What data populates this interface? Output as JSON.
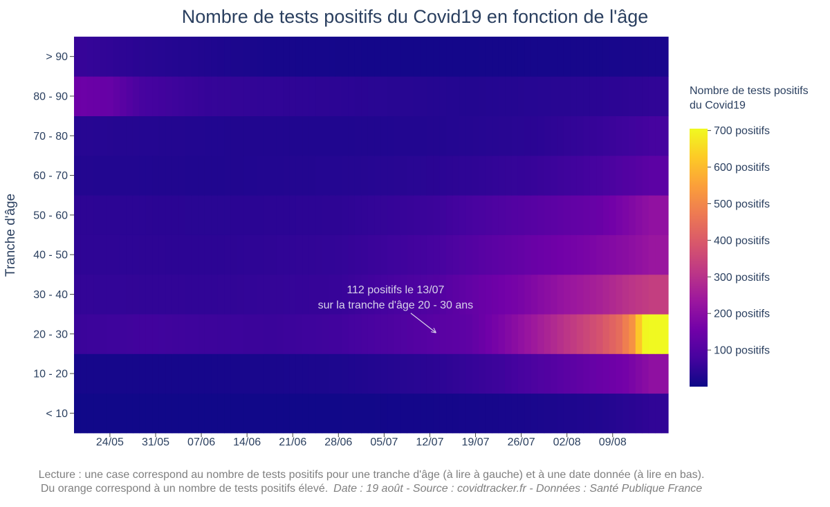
{
  "chart_data": {
    "type": "heatmap",
    "title": "Nombre de tests positifs du Covid19 en fonction de l'âge",
    "ylabel": "Tranche d'âge",
    "xlabel": "",
    "x_ticks": [
      "24/05",
      "31/05",
      "07/06",
      "14/06",
      "21/06",
      "28/06",
      "05/07",
      "12/07",
      "19/07",
      "26/07",
      "02/08",
      "09/08"
    ],
    "x_dates": [
      "19/05",
      "20/05",
      "21/05",
      "22/05",
      "23/05",
      "24/05",
      "25/05",
      "26/05",
      "27/05",
      "28/05",
      "29/05",
      "30/05",
      "31/05",
      "01/06",
      "02/06",
      "03/06",
      "04/06",
      "05/06",
      "06/06",
      "07/06",
      "08/06",
      "09/06",
      "10/06",
      "11/06",
      "12/06",
      "13/06",
      "14/06",
      "15/06",
      "16/06",
      "17/06",
      "18/06",
      "19/06",
      "20/06",
      "21/06",
      "22/06",
      "23/06",
      "24/06",
      "25/06",
      "26/06",
      "27/06",
      "28/06",
      "29/06",
      "30/06",
      "01/07",
      "02/07",
      "03/07",
      "04/07",
      "05/07",
      "06/07",
      "07/07",
      "08/07",
      "09/07",
      "10/07",
      "11/07",
      "12/07",
      "13/07",
      "14/07",
      "15/07",
      "16/07",
      "17/07",
      "18/07",
      "19/07",
      "20/07",
      "21/07",
      "22/07",
      "23/07",
      "24/07",
      "25/07",
      "26/07",
      "27/07",
      "28/07",
      "29/07",
      "30/07",
      "31/07",
      "01/08",
      "02/08",
      "03/08",
      "04/08",
      "05/08",
      "06/08",
      "07/08",
      "08/08",
      "09/08",
      "10/08",
      "11/08",
      "12/08",
      "13/08",
      "14/08",
      "15/08",
      "16/08",
      "17/08"
    ],
    "y_categories": [
      "< 10",
      "10 - 20",
      "20 - 30",
      "30 - 40",
      "40 - 50",
      "50 - 60",
      "60 - 70",
      "70 - 80",
      "80 - 90",
      "> 90"
    ],
    "z_by_row": {
      "< 10": {
        "key": [
          [
            0,
            6
          ],
          [
            20,
            5
          ],
          [
            40,
            6
          ],
          [
            60,
            12
          ],
          [
            70,
            18
          ],
          [
            80,
            28
          ],
          [
            88,
            48
          ]
        ]
      },
      "10 - 20": {
        "key": [
          [
            0,
            13
          ],
          [
            20,
            13
          ],
          [
            40,
            22
          ],
          [
            55,
            42
          ],
          [
            65,
            68
          ],
          [
            72,
            100
          ],
          [
            78,
            130
          ],
          [
            84,
            160
          ],
          [
            88,
            210
          ]
        ]
      },
      "20 - 30": {
        "key": [
          [
            0,
            62
          ],
          [
            10,
            72
          ],
          [
            20,
            66
          ],
          [
            30,
            62
          ],
          [
            40,
            72
          ],
          [
            50,
            96
          ],
          [
            55,
            112
          ],
          [
            60,
            122
          ],
          [
            65,
            175
          ],
          [
            70,
            240
          ],
          [
            75,
            310
          ],
          [
            80,
            380
          ],
          [
            83,
            440
          ],
          [
            85,
            520
          ],
          [
            86,
            620
          ],
          [
            87,
            700
          ],
          [
            88,
            705
          ]
        ]
      },
      "30 - 40": {
        "key": [
          [
            0,
            52
          ],
          [
            20,
            48
          ],
          [
            40,
            58
          ],
          [
            55,
            100
          ],
          [
            62,
            140
          ],
          [
            68,
            170
          ],
          [
            74,
            220
          ],
          [
            80,
            260
          ],
          [
            84,
            300
          ],
          [
            88,
            330
          ]
        ]
      },
      "40 - 50": {
        "key": [
          [
            0,
            46
          ],
          [
            20,
            42
          ],
          [
            40,
            52
          ],
          [
            55,
            80
          ],
          [
            62,
            110
          ],
          [
            70,
            140
          ],
          [
            78,
            170
          ],
          [
            84,
            200
          ],
          [
            88,
            230
          ]
        ]
      },
      "50 - 60": {
        "key": [
          [
            0,
            44
          ],
          [
            20,
            38
          ],
          [
            40,
            44
          ],
          [
            55,
            65
          ],
          [
            65,
            95
          ],
          [
            72,
            115
          ],
          [
            80,
            140
          ],
          [
            84,
            175
          ],
          [
            88,
            215
          ]
        ]
      },
      "60 - 70": {
        "key": [
          [
            0,
            30
          ],
          [
            20,
            26
          ],
          [
            40,
            32
          ],
          [
            55,
            40
          ],
          [
            70,
            58
          ],
          [
            80,
            80
          ],
          [
            88,
            118
          ]
        ]
      },
      "70 - 80": {
        "key": [
          [
            0,
            36
          ],
          [
            20,
            28
          ],
          [
            40,
            26
          ],
          [
            55,
            30
          ],
          [
            70,
            40
          ],
          [
            80,
            58
          ],
          [
            88,
            78
          ]
        ]
      },
      "80 - 90": {
        "key": [
          [
            0,
            148
          ],
          [
            5,
            135
          ],
          [
            10,
            80
          ],
          [
            20,
            55
          ],
          [
            40,
            42
          ],
          [
            60,
            30
          ],
          [
            80,
            40
          ],
          [
            88,
            48
          ]
        ]
      },
      "> 90": {
        "key": [
          [
            0,
            58
          ],
          [
            10,
            38
          ],
          [
            20,
            26
          ],
          [
            30,
            14
          ],
          [
            45,
            10
          ],
          [
            60,
            10
          ],
          [
            80,
            14
          ],
          [
            88,
            18
          ]
        ]
      }
    },
    "zrange": [
      0,
      705
    ],
    "colorscale": [
      "#0d0887",
      "#46039f",
      "#7201a8",
      "#9c179e",
      "#bd3786",
      "#d8576b",
      "#ed7953",
      "#fb9f3a",
      "#fdca26",
      "#f0f921"
    ],
    "colorbar": {
      "title_line1": "Nombre de tests positifs",
      "title_line2": "du Covid19",
      "ticks": [
        {
          "value": 100,
          "label": "100 positifs"
        },
        {
          "value": 200,
          "label": "200 positifs"
        },
        {
          "value": 300,
          "label": "300 positifs"
        },
        {
          "value": 400,
          "label": "400 positifs"
        },
        {
          "value": 500,
          "label": "500 positifs"
        },
        {
          "value": 600,
          "label": "600 positifs"
        },
        {
          "value": 700,
          "label": "700 positifs"
        }
      ]
    },
    "annotation": {
      "line1": "112 positifs le 13/07",
      "line2": "sur la tranche d'âge 20 - 30 ans",
      "x_date": "13/07",
      "y_category": "20 - 30"
    },
    "grid": false,
    "legend": "colorbar-right"
  },
  "footer": {
    "line1": "Lecture : une case correspond au nombre de tests positifs pour une tranche d'âge (à lire à gauche) et à une date donnée (à lire en bas).",
    "line2_normal": "Du orange correspond à un nombre de tests positifs élevé.",
    "line2_italic": "Date : 19 août - Source : covidtracker.fr - Données : Santé Publique France"
  }
}
